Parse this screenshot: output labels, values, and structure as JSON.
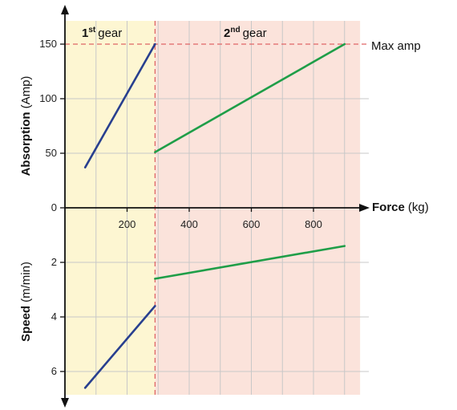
{
  "chart_data": {
    "type": "line",
    "title": "",
    "x_axis": {
      "label_bold": "Force",
      "label_unit": "(kg)",
      "range": [
        0,
        950
      ],
      "ticks": [
        200,
        400,
        600,
        800
      ]
    },
    "top_axis": {
      "label_bold": "Absorption",
      "label_unit": "(Amp)",
      "range": [
        0,
        165
      ],
      "ticks": [
        0,
        50,
        100,
        150
      ]
    },
    "bottom_axis": {
      "label_bold": "Speed",
      "label_unit": "(m/min)",
      "range": [
        0,
        7
      ],
      "ticks": [
        2,
        4,
        6
      ]
    },
    "gear_change_force": 290,
    "regions": [
      {
        "name_num": "1",
        "name_sup": "st",
        "name_word": "gear",
        "from": 0,
        "to": 290,
        "color": "#fdf6d2"
      },
      {
        "name_num": "2",
        "name_sup": "nd",
        "name_word": "gear",
        "from": 290,
        "to": 950,
        "color": "#fbe3db"
      }
    ],
    "max_amp": {
      "value": 150,
      "label": "Max amp",
      "color": "#e06666"
    },
    "absorption_series": [
      {
        "gear": "1st",
        "color": "#283f8f",
        "points": [
          [
            65,
            37
          ],
          [
            290,
            150
          ]
        ]
      },
      {
        "gear": "2nd",
        "color": "#1f9e48",
        "points": [
          [
            290,
            51
          ],
          [
            900,
            150
          ]
        ]
      }
    ],
    "speed_series": [
      {
        "gear": "1st",
        "color": "#283f8f",
        "points": [
          [
            65,
            6.6
          ],
          [
            290,
            3.6
          ]
        ]
      },
      {
        "gear": "2nd",
        "color": "#1f9e48",
        "points": [
          [
            290,
            2.6
          ],
          [
            900,
            1.4
          ]
        ]
      }
    ]
  }
}
